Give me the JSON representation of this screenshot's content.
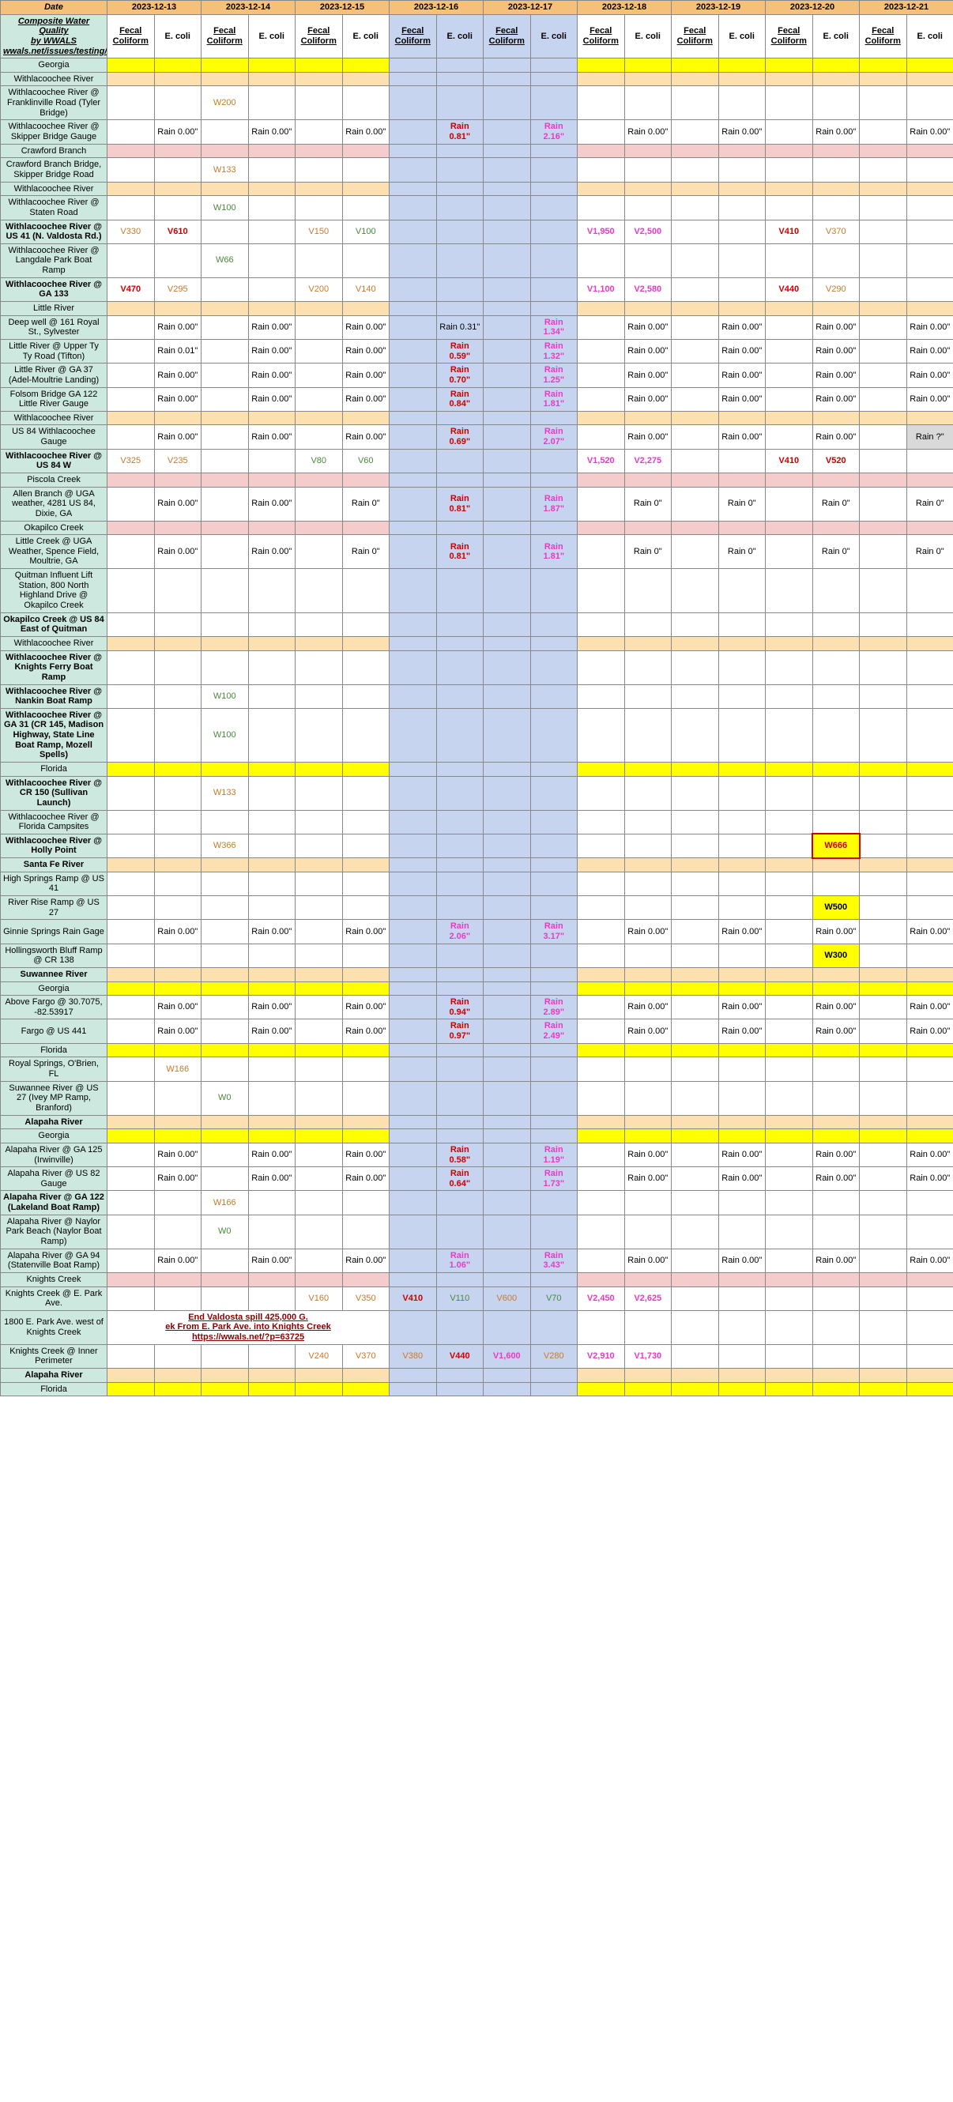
{
  "title_lines": [
    "Composite Water Quality",
    "by WWALS",
    "wwals.net/issues/testing/"
  ],
  "date_label": "Date",
  "dates": [
    "2023-12-13",
    "2023-12-14",
    "2023-12-15",
    "2023-12-16",
    "2023-12-17",
    "2023-12-18",
    "2023-12-19",
    "2023-12-20",
    "2023-12-21"
  ],
  "sub_headers": [
    "Fecal Coliform",
    "E. coli"
  ],
  "blue_dates": [
    3,
    4
  ],
  "rows": [
    {
      "type": "yellow",
      "label": "Georgia"
    },
    {
      "type": "peach",
      "label": "Withlacoochee River"
    },
    {
      "type": "data",
      "label": "Withlacoochee River @ Franklinville Road (Tyler Bridge)",
      "cells": {
        "2": {
          "t": "W200",
          "c": "orange-txt"
        }
      }
    },
    {
      "type": "data",
      "label": "Withlacoochee River @ Skipper Bridge Gauge",
      "ecoli": {
        "0": "Rain 0.00\"",
        "1": "Rain 0.00\"",
        "2": "Rain 0.00\"",
        "3": {
          "t": "Rain 0.81\"",
          "c": "red-txt"
        },
        "4": {
          "t": "Rain 2.16\"",
          "c": "magenta-txt"
        },
        "5": "Rain 0.00\"",
        "6": "Rain 0.00\"",
        "7": "Rain 0.00\"",
        "8": "Rain 0.00\""
      }
    },
    {
      "type": "pink",
      "label": "Crawford Branch"
    },
    {
      "type": "data",
      "label": "Crawford Branch Bridge, Skipper Bridge Road",
      "cells": {
        "2": {
          "t": "W133",
          "c": "orange-txt"
        }
      }
    },
    {
      "type": "peach",
      "label": "Withlacoochee River"
    },
    {
      "type": "data",
      "label": "Withlacoochee River @ Staten Road",
      "cells": {
        "2": {
          "t": "W100",
          "c": "green-txt"
        }
      }
    },
    {
      "type": "data",
      "label": "Withlacoochee River @ US 41 (N. Valdosta Rd.)",
      "label_bold": true,
      "cells": {
        "0": {
          "t": "V330",
          "c": "orange-txt"
        },
        "1": {
          "t": "V610",
          "c": "red-txt"
        },
        "4": {
          "t": "V150",
          "c": "orange-txt"
        },
        "5": {
          "t": "V100",
          "c": "green-txt"
        },
        "10": {
          "t": "V1,950",
          "c": "magenta-txt"
        },
        "11": {
          "t": "V2,500",
          "c": "magenta-txt"
        },
        "14": {
          "t": "V410",
          "c": "red-txt"
        },
        "15": {
          "t": "V370",
          "c": "orange-txt"
        }
      }
    },
    {
      "type": "data",
      "label": "Withlacoochee River @ Langdale Park Boat Ramp",
      "cells": {
        "2": {
          "t": "W66",
          "c": "green-txt"
        }
      }
    },
    {
      "type": "data",
      "label": "Withlacoochee River @ GA 133",
      "label_bold": true,
      "cells": {
        "0": {
          "t": "V470",
          "c": "red-txt"
        },
        "1": {
          "t": "V295",
          "c": "orange-txt"
        },
        "4": {
          "t": "V200",
          "c": "orange-txt"
        },
        "5": {
          "t": "V140",
          "c": "orange-txt"
        },
        "10": {
          "t": "V1,100",
          "c": "magenta-txt"
        },
        "11": {
          "t": "V2,580",
          "c": "magenta-txt"
        },
        "14": {
          "t": "V440",
          "c": "red-txt"
        },
        "15": {
          "t": "V290",
          "c": "orange-txt"
        }
      }
    },
    {
      "type": "peach",
      "label": "Little River"
    },
    {
      "type": "data",
      "label": "Deep well @ 161 Royal St., Sylvester",
      "ecoli": {
        "0": "Rain 0.00\"",
        "1": "Rain 0.00\"",
        "2": "Rain 0.00\"",
        "3": {
          "t": "Rain 0.31\"",
          "c": "black-txt"
        },
        "4": {
          "t": "Rain 1.34\"",
          "c": "magenta-txt"
        },
        "5": "Rain 0.00\"",
        "6": "Rain 0.00\"",
        "7": "Rain 0.00\"",
        "8": "Rain 0.00\""
      }
    },
    {
      "type": "data",
      "label": "Little River @ Upper Ty Ty Road (Tifton)",
      "ecoli": {
        "0": "Rain 0.01\"",
        "1": "Rain 0.00\"",
        "2": "Rain 0.00\"",
        "3": {
          "t": "Rain 0.59\"",
          "c": "red-txt"
        },
        "4": {
          "t": "Rain 1.32\"",
          "c": "magenta-txt"
        },
        "5": "Rain 0.00\"",
        "6": "Rain 0.00\"",
        "7": "Rain 0.00\"",
        "8": "Rain 0.00\""
      }
    },
    {
      "type": "data",
      "label": "Little River @ GA 37 (Adel-Moultrie Landing)",
      "ecoli": {
        "0": "Rain 0.00\"",
        "1": "Rain 0.00\"",
        "2": "Rain 0.00\"",
        "3": {
          "t": "Rain 0.70\"",
          "c": "red-txt"
        },
        "4": {
          "t": "Rain 1.25\"",
          "c": "magenta-txt"
        },
        "5": "Rain 0.00\"",
        "6": "Rain 0.00\"",
        "7": "Rain 0.00\"",
        "8": "Rain 0.00\""
      }
    },
    {
      "type": "data",
      "label": "Folsom Bridge GA 122 Little River Gauge",
      "ecoli": {
        "0": "Rain 0.00\"",
        "1": "Rain 0.00\"",
        "2": "Rain 0.00\"",
        "3": {
          "t": "Rain 0.84\"",
          "c": "red-txt"
        },
        "4": {
          "t": "Rain 1.81\"",
          "c": "magenta-txt"
        },
        "5": "Rain 0.00\"",
        "6": "Rain 0.00\"",
        "7": "Rain 0.00\"",
        "8": "Rain 0.00\""
      }
    },
    {
      "type": "peach",
      "label": "Withlacoochee River"
    },
    {
      "type": "data",
      "label": "US 84 Withlacoochee Gauge",
      "ecoli": {
        "0": "Rain 0.00\"",
        "1": "Rain 0.00\"",
        "2": "Rain 0.00\"",
        "3": {
          "t": "Rain 0.69\"",
          "c": "red-txt"
        },
        "4": {
          "t": "Rain 2.07\"",
          "c": "magenta-txt"
        },
        "5": "Rain 0.00\"",
        "6": "Rain 0.00\"",
        "7": "Rain 0.00\"",
        "8": {
          "t": "Rain ?\"",
          "bg": "grey"
        }
      }
    },
    {
      "type": "data",
      "label": "Withlacoochee River @ US 84 W",
      "label_bold": true,
      "cells": {
        "0": {
          "t": "V325",
          "c": "orange-txt"
        },
        "1": {
          "t": "V235",
          "c": "orange-txt"
        },
        "4": {
          "t": "V80",
          "c": "green-txt"
        },
        "5": {
          "t": "V60",
          "c": "green-txt"
        },
        "10": {
          "t": "V1,520",
          "c": "magenta-txt"
        },
        "11": {
          "t": "V2,275",
          "c": "magenta-txt"
        },
        "14": {
          "t": "V410",
          "c": "red-txt"
        },
        "15": {
          "t": "V520",
          "c": "red-txt"
        }
      }
    },
    {
      "type": "pink",
      "label": "Piscola Creek"
    },
    {
      "type": "data",
      "label": "Allen  Branch @ UGA weather, 4281 US 84, Dixie, GA",
      "ecoli": {
        "0": "Rain 0.00\"",
        "1": "Rain 0.00\"",
        "2": "Rain 0\"",
        "3": {
          "t": "Rain 0.81\"",
          "c": "red-txt"
        },
        "4": {
          "t": "Rain 1.87\"",
          "c": "magenta-txt"
        },
        "5": "Rain 0\"",
        "6": "Rain 0\"",
        "7": "Rain 0\"",
        "8": "Rain 0\""
      }
    },
    {
      "type": "pink",
      "label": "Okapilco Creek"
    },
    {
      "type": "data",
      "label": "Little Creek @ UGA Weather, Spence Field, Moultrie, GA",
      "ecoli": {
        "0": "Rain 0.00\"",
        "1": "Rain 0.00\"",
        "2": "Rain 0\"",
        "3": {
          "t": "Rain 0.81\"",
          "c": "red-txt"
        },
        "4": {
          "t": "Rain 1.81\"",
          "c": "magenta-txt"
        },
        "5": "Rain 0\"",
        "6": "Rain 0\"",
        "7": "Rain 0\"",
        "8": "Rain 0\""
      }
    },
    {
      "type": "data",
      "label": "Quitman Influent Lift Station, 800 North Highland Drive @ Okapilco Creek"
    },
    {
      "type": "data",
      "label": "Okapilco Creek @ US 84 East of Quitman",
      "label_bold": true
    },
    {
      "type": "peach",
      "label": "Withlacoochee River"
    },
    {
      "type": "data",
      "label": "Withlacoochee River @ Knights Ferry Boat Ramp",
      "label_bold": true
    },
    {
      "type": "data",
      "label": "Withlacoochee River @ Nankin Boat Ramp",
      "label_bold": true,
      "cells": {
        "2": {
          "t": "W100",
          "c": "green-txt"
        }
      }
    },
    {
      "type": "data",
      "label": "Withlacoochee River @ GA 31 (CR 145, Madison Highway, State Line Boat Ramp, Mozell Spells)",
      "label_bold": true,
      "cells": {
        "2": {
          "t": "W100",
          "c": "green-txt"
        }
      }
    },
    {
      "type": "yellow",
      "label": "Florida"
    },
    {
      "type": "data",
      "label": "Withlacoochee River @ CR 150 (Sullivan Launch)",
      "label_bold": true,
      "cells": {
        "2": {
          "t": "W133",
          "c": "orange-txt"
        }
      }
    },
    {
      "type": "data",
      "label": "Withlacoochee River @ Florida Campsites"
    },
    {
      "type": "data",
      "label": "Withlacoochee River @ Holly Point",
      "label_bold": true,
      "cells": {
        "2": {
          "t": "W366",
          "c": "orange-txt"
        },
        "15": {
          "t": "W666",
          "cls": "w666"
        }
      }
    },
    {
      "type": "peach",
      "label": "Santa Fe River",
      "label_bold": true
    },
    {
      "type": "data",
      "label": "High Springs Ramp @ US 41"
    },
    {
      "type": "data",
      "label": "River Rise Ramp @ US 27",
      "cells": {
        "15": {
          "t": "W500",
          "cls": "w500"
        }
      }
    },
    {
      "type": "data",
      "label": "Ginnie Springs Rain Gage",
      "ecoli": {
        "0": "Rain 0.00\"",
        "1": "Rain 0.00\"",
        "2": "Rain 0.00\"",
        "3": {
          "t": "Rain 2.06\"",
          "c": "magenta-txt"
        },
        "4": {
          "t": "Rain 3.17\"",
          "c": "magenta-txt"
        },
        "5": "Rain 0.00\"",
        "6": "Rain 0.00\"",
        "7": "Rain 0.00\"",
        "8": "Rain 0.00\""
      }
    },
    {
      "type": "data",
      "label": "Hollingsworth Bluff Ramp @ CR 138",
      "cells": {
        "15": {
          "t": "W300",
          "cls": "w500"
        }
      }
    },
    {
      "type": "peach",
      "label": "Suwannee River",
      "label_bold": true
    },
    {
      "type": "yellow",
      "label": "Georgia"
    },
    {
      "type": "data",
      "label": "Above Fargo @ 30.7075, -82.53917",
      "ecoli": {
        "0": "Rain 0.00\"",
        "1": "Rain 0.00\"",
        "2": "Rain 0.00\"",
        "3": {
          "t": "Rain 0.94\"",
          "c": "red-txt"
        },
        "4": {
          "t": "Rain 2.89\"",
          "c": "magenta-txt"
        },
        "5": "Rain 0.00\"",
        "6": "Rain 0.00\"",
        "7": "Rain 0.00\"",
        "8": "Rain 0.00\""
      }
    },
    {
      "type": "data",
      "label": "Fargo @ US 441",
      "ecoli": {
        "0": "Rain 0.00\"",
        "1": "Rain 0.00\"",
        "2": "Rain 0.00\"",
        "3": {
          "t": "Rain 0.97\"",
          "c": "red-txt"
        },
        "4": {
          "t": "Rain 2.49\"",
          "c": "magenta-txt"
        },
        "5": "Rain 0.00\"",
        "6": "Rain 0.00\"",
        "7": "Rain 0.00\"",
        "8": "Rain 0.00\""
      }
    },
    {
      "type": "yellow",
      "label": "Florida"
    },
    {
      "type": "data",
      "label": "Royal Springs, O'Brien, FL",
      "cells": {
        "1": {
          "t": "W166",
          "c": "orange-txt"
        }
      }
    },
    {
      "type": "data",
      "label": "Suwannee River @ US 27 (Ivey MP Ramp, Branford)",
      "cells": {
        "2": {
          "t": "W0",
          "c": "green-txt"
        }
      }
    },
    {
      "type": "peach",
      "label": "Alapaha River",
      "label_bold": true
    },
    {
      "type": "yellow",
      "label": "Georgia"
    },
    {
      "type": "data",
      "label": "Alapaha River @ GA 125 (Irwinville)",
      "ecoli": {
        "0": "Rain 0.00\"",
        "1": "Rain 0.00\"",
        "2": "Rain 0.00\"",
        "3": {
          "t": "Rain 0.58\"",
          "c": "red-txt"
        },
        "4": {
          "t": "Rain 1.19\"",
          "c": "magenta-txt"
        },
        "5": "Rain 0.00\"",
        "6": "Rain 0.00\"",
        "7": "Rain 0.00\"",
        "8": "Rain 0.00\""
      }
    },
    {
      "type": "data",
      "label": "Alapaha River @ US 82 Gauge",
      "ecoli": {
        "0": "Rain 0.00\"",
        "1": "Rain 0.00\"",
        "2": "Rain 0.00\"",
        "3": {
          "t": "Rain 0.64\"",
          "c": "red-txt"
        },
        "4": {
          "t": "Rain 1.73\"",
          "c": "magenta-txt"
        },
        "5": "Rain 0.00\"",
        "6": "Rain 0.00\"",
        "7": "Rain 0.00\"",
        "8": "Rain 0.00\""
      }
    },
    {
      "type": "data",
      "label": "Alapaha River @ GA 122 (Lakeland Boat Ramp)",
      "label_bold": true,
      "cells": {
        "2": {
          "t": "W166",
          "c": "orange-txt"
        }
      }
    },
    {
      "type": "data",
      "label": "Alapaha River @ Naylor Park Beach (Naylor Boat Ramp)",
      "cells": {
        "2": {
          "t": "W0",
          "c": "green-txt"
        }
      }
    },
    {
      "type": "data",
      "label": "Alapaha River @ GA 94 (Statenville Boat Ramp)",
      "ecoli": {
        "0": "Rain 0.00\"",
        "1": "Rain 0.00\"",
        "2": "Rain 0.00\"",
        "3": {
          "t": "Rain 1.06\"",
          "c": "magenta-txt"
        },
        "4": {
          "t": "Rain 3.43\"",
          "c": "magenta-txt"
        },
        "5": "Rain 0.00\"",
        "6": "Rain 0.00\"",
        "7": "Rain 0.00\"",
        "8": "Rain 0.00\""
      }
    },
    {
      "type": "pink",
      "label": "Knights Creek"
    },
    {
      "type": "data",
      "label": "Knights Creek @ E. Park Ave.",
      "cells": {
        "4": {
          "t": "V160",
          "c": "orange-txt"
        },
        "5": {
          "t": "V350",
          "c": "orange-txt"
        },
        "6": {
          "t": "V410",
          "c": "red-txt"
        },
        "7": {
          "t": "V110",
          "c": "green-txt"
        },
        "8": {
          "t": "V600",
          "c": "orange-txt"
        },
        "9": {
          "t": "V70",
          "c": "green-txt"
        },
        "10": {
          "t": "V2,450",
          "c": "magenta-txt"
        },
        "11": {
          "t": "V2,625",
          "c": "magenta-txt"
        }
      }
    },
    {
      "type": "spill",
      "label": "1800 E. Park Ave. west of Knights Creek",
      "spill_lines": [
        "End Valdosta spill 425,000 G.",
        "ek   From E. Park Ave. into Knights Creek",
        "https://wwals.net/?p=63725"
      ]
    },
    {
      "type": "data",
      "label": "Knights Creek @ Inner Perimeter",
      "cells": {
        "4": {
          "t": "V240",
          "c": "orange-txt"
        },
        "5": {
          "t": "V370",
          "c": "orange-txt"
        },
        "6": {
          "t": "V380",
          "c": "orange-txt"
        },
        "7": {
          "t": "V440",
          "c": "red-txt"
        },
        "8": {
          "t": "V1,600",
          "c": "magenta-txt"
        },
        "9": {
          "t": "V280",
          "c": "orange-txt"
        },
        "10": {
          "t": "V2,910",
          "c": "magenta-txt"
        },
        "11": {
          "t": "V1,730",
          "c": "magenta-txt"
        }
      }
    },
    {
      "type": "peach",
      "label": "Alapaha River",
      "label_bold": true
    },
    {
      "type": "yellow",
      "label": "Florida"
    }
  ],
  "colors": {
    "row_label_bg": "#cce8df",
    "date_bg": "#f4c07a",
    "yellow": "#ffff00",
    "peach": "#fde0b0",
    "pink": "#f5cccc",
    "blue": "#c7d4f0",
    "grey": "#d9d9d9",
    "green": "#4a8a3a",
    "orange": "#c77a2b",
    "red": "#cc0000",
    "magenta": "#e83bc5"
  },
  "col_widths": {
    "label": "135px",
    "data": "59.5px"
  }
}
